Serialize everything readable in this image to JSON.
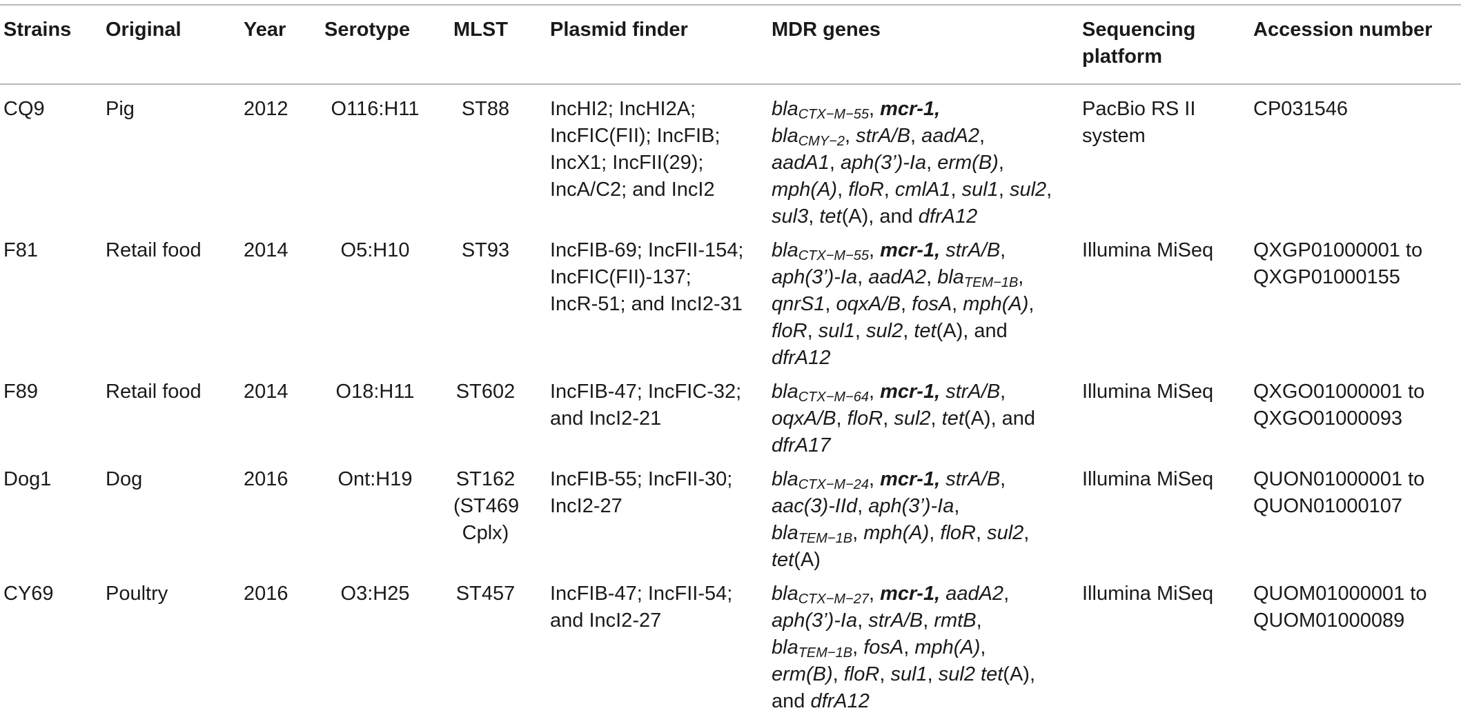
{
  "table": {
    "headers": [
      "Strains",
      "Original",
      "Year",
      "Serotype",
      "MLST",
      "Plasmid finder",
      "MDR genes",
      "Sequencing platform",
      "Accession number"
    ],
    "rows": [
      {
        "strain": "CQ9",
        "original": "Pig",
        "year": "2012",
        "serotype": "O116:H11",
        "mlst": "ST88",
        "plasmid": [
          "IncHI2; IncHI2A;",
          "IncFIC(FII); IncFIB;",
          "IncX1; IncFII(29);",
          "IncA/C2; and IncI2"
        ],
        "platform": [
          "PacBio RS II",
          "system"
        ],
        "accession": [
          "CP031546"
        ]
      },
      {
        "strain": "F81",
        "original": "Retail food",
        "year": "2014",
        "serotype": "O5:H10",
        "mlst": "ST93",
        "plasmid": [
          "IncFIB-69; IncFII-154;",
          "IncFIC(FII)-137;",
          "IncR-51; and IncI2-31"
        ],
        "platform": [
          "Illumina MiSeq"
        ],
        "accession": [
          "QXGP01000001 to",
          "QXGP01000155"
        ]
      },
      {
        "strain": "F89",
        "original": "Retail food",
        "year": "2014",
        "serotype": "O18:H11",
        "mlst": "ST602",
        "plasmid": [
          "IncFIB-47; IncFIC-32;",
          "and IncI2-21"
        ],
        "platform": [
          "Illumina MiSeq"
        ],
        "accession": [
          "QXGO01000001 to",
          "QXGO01000093"
        ]
      },
      {
        "strain": "Dog1",
        "original": "Dog",
        "year": "2016",
        "serotype": "Ont:H19",
        "mlst": [
          "ST162",
          "(ST469",
          "Cplx)"
        ],
        "plasmid": [
          "IncFIB-55; IncFII-30;",
          "IncI2-27"
        ],
        "platform": [
          "Illumina MiSeq"
        ],
        "accession": [
          "QUON01000001 to",
          "QUON01000107"
        ]
      },
      {
        "strain": "CY69",
        "original": "Poultry",
        "year": "2016",
        "serotype": "O3:H25",
        "mlst": "ST457",
        "plasmid": [
          "IncFIB-47; IncFII-54;",
          "and IncI2-27"
        ],
        "platform": [
          "Illumina MiSeq"
        ],
        "accession": [
          "QUOM01000001 to",
          "QUOM01000089"
        ]
      }
    ],
    "mdr": [
      [
        [
          {
            "t": "bla",
            "s": "CTX−M−55",
            "i": true
          },
          {
            "t": ", "
          },
          {
            "t": "mcr-1,",
            "b": true
          }
        ],
        [
          {
            "t": "bla",
            "s": "CMY−2",
            "i": true
          },
          {
            "t": ", "
          },
          {
            "t": "strA/B",
            "i": true
          },
          {
            "t": ", "
          },
          {
            "t": "aadA2",
            "i": true
          },
          {
            "t": ","
          }
        ],
        [
          {
            "t": "aadA1",
            "i": true
          },
          {
            "t": ", "
          },
          {
            "t": "aph(3’)-Ia",
            "i": true
          },
          {
            "t": ", "
          },
          {
            "t": "erm(B)",
            "i": true
          },
          {
            "t": ","
          }
        ],
        [
          {
            "t": "mph(A)",
            "i": true
          },
          {
            "t": ", "
          },
          {
            "t": "floR",
            "i": true
          },
          {
            "t": ", "
          },
          {
            "t": "cmlA1",
            "i": true
          },
          {
            "t": ", "
          },
          {
            "t": "sul1",
            "i": true
          },
          {
            "t": ", "
          },
          {
            "t": "sul2",
            "i": true
          },
          {
            "t": ","
          }
        ],
        [
          {
            "t": "sul3",
            "i": true
          },
          {
            "t": ", "
          },
          {
            "t": "tet",
            "i": true
          },
          {
            "t": "(A), and "
          },
          {
            "t": "dfrA12",
            "i": true
          }
        ]
      ],
      [
        [
          {
            "t": "bla",
            "s": "CTX−M−55",
            "i": true
          },
          {
            "t": ", "
          },
          {
            "t": "mcr-1,",
            "b": true
          },
          {
            "t": " "
          },
          {
            "t": "strA/B",
            "i": true
          },
          {
            "t": ","
          }
        ],
        [
          {
            "t": "aph(3’)-Ia",
            "i": true
          },
          {
            "t": ", "
          },
          {
            "t": "aadA2",
            "i": true
          },
          {
            "t": ", "
          },
          {
            "t": "bla",
            "s": "TEM−1B",
            "i": true
          },
          {
            "t": ","
          }
        ],
        [
          {
            "t": "qnrS1",
            "i": true
          },
          {
            "t": ", "
          },
          {
            "t": "oqxA/B",
            "i": true
          },
          {
            "t": ", "
          },
          {
            "t": "fosA",
            "i": true
          },
          {
            "t": ", "
          },
          {
            "t": "mph(A)",
            "i": true
          },
          {
            "t": ","
          }
        ],
        [
          {
            "t": "floR",
            "i": true
          },
          {
            "t": ", "
          },
          {
            "t": "sul1",
            "i": true
          },
          {
            "t": ", "
          },
          {
            "t": "sul2",
            "i": true
          },
          {
            "t": ", "
          },
          {
            "t": "tet",
            "i": true
          },
          {
            "t": "(A), and"
          }
        ],
        [
          {
            "t": "dfrA12",
            "i": true
          }
        ]
      ],
      [
        [
          {
            "t": "bla",
            "s": "CTX−M−64",
            "i": true
          },
          {
            "t": ", "
          },
          {
            "t": "mcr-1,",
            "b": true
          },
          {
            "t": " "
          },
          {
            "t": "strA/B",
            "i": true
          },
          {
            "t": ","
          }
        ],
        [
          {
            "t": "oqxA/B",
            "i": true
          },
          {
            "t": ", "
          },
          {
            "t": "floR",
            "i": true
          },
          {
            "t": ", "
          },
          {
            "t": "sul2",
            "i": true
          },
          {
            "t": ", "
          },
          {
            "t": "tet",
            "i": true
          },
          {
            "t": "(A), and"
          }
        ],
        [
          {
            "t": "dfrA17",
            "i": true
          }
        ]
      ],
      [
        [
          {
            "t": "bla",
            "s": "CTX−M−24",
            "i": true
          },
          {
            "t": ", "
          },
          {
            "t": "mcr-1,",
            "b": true
          },
          {
            "t": " "
          },
          {
            "t": "strA/B",
            "i": true
          },
          {
            "t": ","
          }
        ],
        [
          {
            "t": "aac(3)-IId",
            "i": true
          },
          {
            "t": ", "
          },
          {
            "t": "aph(3’)-Ia",
            "i": true
          },
          {
            "t": ","
          }
        ],
        [
          {
            "t": "bla",
            "s": "TEM−1B",
            "i": true
          },
          {
            "t": ", "
          },
          {
            "t": "mph(A)",
            "i": true
          },
          {
            "t": ", "
          },
          {
            "t": "floR",
            "i": true
          },
          {
            "t": ", "
          },
          {
            "t": "sul2",
            "i": true
          },
          {
            "t": ","
          }
        ],
        [
          {
            "t": "tet",
            "i": true
          },
          {
            "t": "(A)"
          }
        ]
      ],
      [
        [
          {
            "t": "bla",
            "s": "CTX−M−27",
            "i": true
          },
          {
            "t": ", "
          },
          {
            "t": "mcr-1,",
            "b": true
          },
          {
            "t": " "
          },
          {
            "t": "aadA2",
            "i": true
          },
          {
            "t": ","
          }
        ],
        [
          {
            "t": "aph(3’)-Ia",
            "i": true
          },
          {
            "t": ", "
          },
          {
            "t": "strA/B",
            "i": true
          },
          {
            "t": ", "
          },
          {
            "t": "rmtB",
            "i": true
          },
          {
            "t": ","
          }
        ],
        [
          {
            "t": "bla",
            "s": "TEM−1B",
            "i": true
          },
          {
            "t": ", "
          },
          {
            "t": "fosA",
            "i": true
          },
          {
            "t": ", "
          },
          {
            "t": "mph(A)",
            "i": true
          },
          {
            "t": ","
          }
        ],
        [
          {
            "t": "erm(B)",
            "i": true
          },
          {
            "t": ", "
          },
          {
            "t": "floR",
            "i": true
          },
          {
            "t": ", "
          },
          {
            "t": "sul1",
            "i": true
          },
          {
            "t": ", "
          },
          {
            "t": "sul2",
            "i": true
          },
          {
            "t": " "
          },
          {
            "t": "tet",
            "i": true
          },
          {
            "t": "(A),"
          }
        ],
        [
          {
            "t": "and "
          },
          {
            "t": "dfrA12",
            "i": true
          }
        ]
      ]
    ]
  }
}
